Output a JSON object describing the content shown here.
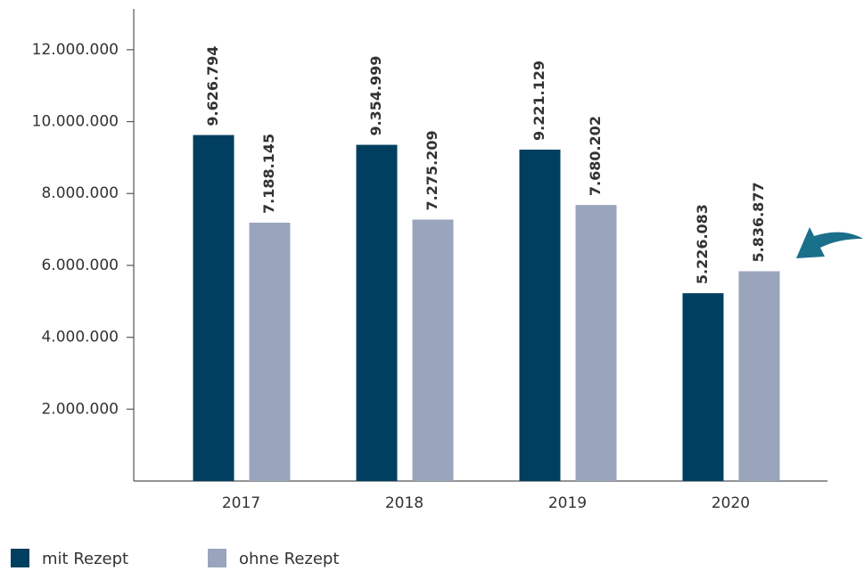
{
  "chart_data": {
    "type": "bar",
    "categories": [
      "2017",
      "2018",
      "2019",
      "2020"
    ],
    "series": [
      {
        "name": "mit Rezept",
        "color": "#003f5f",
        "values": [
          9626794,
          9354999,
          9221129,
          5226083
        ],
        "value_labels": [
          "9.626.794",
          "9.354.999",
          "9.221.129",
          "5.226.083"
        ]
      },
      {
        "name": "ohne Rezept",
        "color": "#98a5bc",
        "values": [
          7188145,
          7275209,
          7680202,
          5836877
        ],
        "value_labels": [
          "7.188.145",
          "7.275.209",
          "7.680.202",
          "5.836.877"
        ]
      }
    ],
    "ylim": [
      0,
      13000000
    ],
    "yticks": [
      {
        "value": 2000000,
        "label": "2.000.000"
      },
      {
        "value": 4000000,
        "label": "4.000.000"
      },
      {
        "value": 6000000,
        "label": "6.000.000"
      },
      {
        "value": 8000000,
        "label": "8.000.000"
      },
      {
        "value": 10000000,
        "label": "10.000.000"
      },
      {
        "value": 12000000,
        "label": "12.000.000"
      }
    ],
    "grid": false
  }
}
